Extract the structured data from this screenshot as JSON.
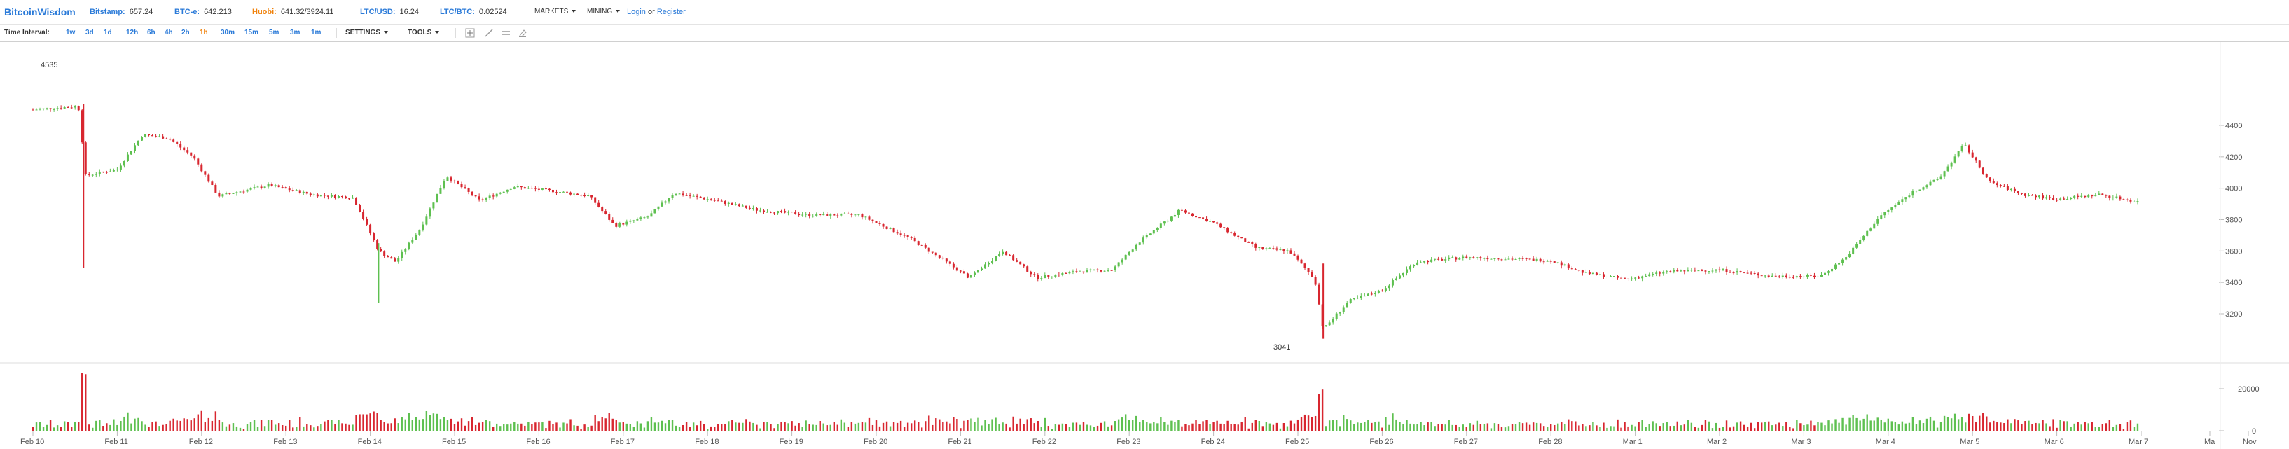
{
  "header": {
    "brand": "BitcoinWisdom",
    "tickers": [
      {
        "label": "Bitstamp:",
        "value": "657.24",
        "color": "blue"
      },
      {
        "label": "BTC-e:",
        "value": "642.213",
        "color": "blue"
      },
      {
        "label": "Huobi:",
        "value": "641.32/3924.11",
        "color": "orange"
      },
      {
        "label": "LTC/USD:",
        "value": "16.24",
        "color": "blue"
      },
      {
        "label": "LTC/BTC:",
        "value": "0.02524",
        "color": "blue"
      }
    ],
    "menus": {
      "markets": "MARKETS",
      "mining": "MINING"
    },
    "login": "Login",
    "or": "or",
    "register": "Register"
  },
  "toolbar": {
    "time_interval_label": "Time Interval:",
    "intervals": [
      "1w",
      "3d",
      "1d",
      "12h",
      "6h",
      "4h",
      "2h",
      "1h",
      "30m",
      "15m",
      "5m",
      "3m",
      "1m"
    ],
    "active_interval": "1h",
    "settings": "SETTINGS",
    "tools": "TOOLS"
  },
  "colors": {
    "up": "#5ec050",
    "down": "#d8262f",
    "accent": "#2a7ad8",
    "active": "#f0820c"
  },
  "chart_data": {
    "type": "candlestick",
    "price_axis": {
      "ticks": [
        4400,
        4200,
        4000,
        3800,
        3600,
        3400,
        3200
      ],
      "range": [
        3041,
        4535
      ]
    },
    "volume_axis": {
      "ticks": [
        20000,
        0
      ]
    },
    "date_labels": [
      "Feb 10",
      "Feb 11",
      "Feb 12",
      "Feb 13",
      "Feb 14",
      "Feb 15",
      "Feb 16",
      "Feb 17",
      "Feb 18",
      "Feb 19",
      "Feb 20",
      "Feb 21",
      "Feb 22",
      "Feb 23",
      "Feb 24",
      "Feb 25",
      "Feb 26",
      "Feb 27",
      "Feb 28",
      "Mar 1",
      "Mar 2",
      "Mar 3",
      "Mar 4",
      "Mar 5",
      "Mar 6",
      "Mar 7",
      "Ma",
      "Nov"
    ],
    "high_label": "4535",
    "low_label": "3041",
    "close_points": [
      {
        "day": 0,
        "close": 4500
      },
      {
        "day": 0.5,
        "close": 4520
      },
      {
        "day": 0.55,
        "close": 4500
      },
      {
        "day": 0.62,
        "close": 4080
      },
      {
        "day": 1.0,
        "close": 4120
      },
      {
        "day": 1.3,
        "close": 4340
      },
      {
        "day": 1.6,
        "close": 4320
      },
      {
        "day": 1.9,
        "close": 4200
      },
      {
        "day": 2.2,
        "close": 3950
      },
      {
        "day": 2.8,
        "close": 4020
      },
      {
        "day": 3.3,
        "close": 3960
      },
      {
        "day": 3.8,
        "close": 3940
      },
      {
        "day": 4.1,
        "close": 3600
      },
      {
        "day": 4.3,
        "close": 3530
      },
      {
        "day": 4.6,
        "close": 3750
      },
      {
        "day": 4.9,
        "close": 4080
      },
      {
        "day": 5.3,
        "close": 3920
      },
      {
        "day": 5.7,
        "close": 4010
      },
      {
        "day": 6.2,
        "close": 3980
      },
      {
        "day": 6.6,
        "close": 3950
      },
      {
        "day": 6.9,
        "close": 3760
      },
      {
        "day": 7.3,
        "close": 3820
      },
      {
        "day": 7.6,
        "close": 3970
      },
      {
        "day": 8.1,
        "close": 3920
      },
      {
        "day": 8.6,
        "close": 3860
      },
      {
        "day": 9.2,
        "close": 3830
      },
      {
        "day": 9.8,
        "close": 3830
      },
      {
        "day": 10.4,
        "close": 3680
      },
      {
        "day": 10.8,
        "close": 3540
      },
      {
        "day": 11.1,
        "close": 3430
      },
      {
        "day": 11.5,
        "close": 3600
      },
      {
        "day": 11.9,
        "close": 3430
      },
      {
        "day": 12.4,
        "close": 3470
      },
      {
        "day": 12.8,
        "close": 3480
      },
      {
        "day": 13.1,
        "close": 3650
      },
      {
        "day": 13.6,
        "close": 3860
      },
      {
        "day": 14.0,
        "close": 3780
      },
      {
        "day": 14.5,
        "close": 3620
      },
      {
        "day": 14.9,
        "close": 3600
      },
      {
        "day": 15.2,
        "close": 3420
      },
      {
        "day": 15.3,
        "close": 3100
      },
      {
        "day": 15.6,
        "close": 3280
      },
      {
        "day": 16.0,
        "close": 3350
      },
      {
        "day": 16.4,
        "close": 3530
      },
      {
        "day": 17.0,
        "close": 3560
      },
      {
        "day": 17.5,
        "close": 3550
      },
      {
        "day": 18.0,
        "close": 3540
      },
      {
        "day": 18.4,
        "close": 3460
      },
      {
        "day": 18.9,
        "close": 3420
      },
      {
        "day": 19.4,
        "close": 3470
      },
      {
        "day": 20.0,
        "close": 3480
      },
      {
        "day": 20.6,
        "close": 3440
      },
      {
        "day": 21.2,
        "close": 3440
      },
      {
        "day": 21.5,
        "close": 3560
      },
      {
        "day": 21.9,
        "close": 3820
      },
      {
        "day": 22.3,
        "close": 3980
      },
      {
        "day": 22.6,
        "close": 4060
      },
      {
        "day": 22.9,
        "close": 4280
      },
      {
        "day": 23.2,
        "close": 4040
      },
      {
        "day": 23.6,
        "close": 3960
      },
      {
        "day": 24.0,
        "close": 3930
      },
      {
        "day": 24.5,
        "close": 3960
      },
      {
        "day": 25.0,
        "close": 3910
      }
    ]
  }
}
